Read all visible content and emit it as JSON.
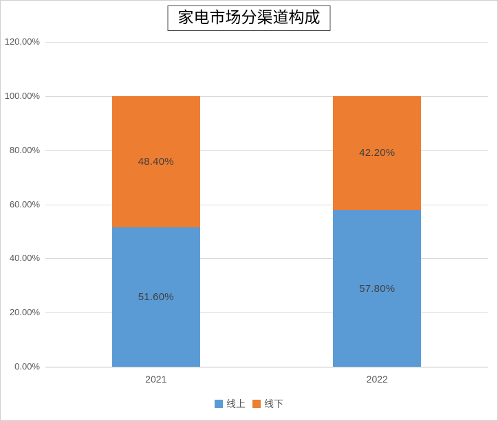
{
  "chart_data": {
    "type": "bar",
    "stacked": true,
    "title": "家电市场分渠道构成",
    "categories": [
      "2021",
      "2022"
    ],
    "series": [
      {
        "name": "线上",
        "color": "#5B9BD5",
        "values": [
          0.516,
          0.578
        ],
        "labels": [
          "51.60%",
          "57.80%"
        ]
      },
      {
        "name": "线下",
        "color": "#ED7D31",
        "values": [
          0.484,
          0.422
        ],
        "labels": [
          "48.40%",
          "42.20%"
        ]
      }
    ],
    "xlabel": "",
    "ylabel": "",
    "ylim": [
      0,
      1.2
    ],
    "y_ticks": [
      {
        "value": 0.0,
        "label": "0.00%"
      },
      {
        "value": 0.2,
        "label": "20.00%"
      },
      {
        "value": 0.4,
        "label": "40.00%"
      },
      {
        "value": 0.6,
        "label": "60.00%"
      },
      {
        "value": 0.8,
        "label": "80.00%"
      },
      {
        "value": 1.0,
        "label": "100.00%"
      },
      {
        "value": 1.2,
        "label": "120.00%"
      }
    ],
    "grid": true,
    "legend_position": "bottom"
  },
  "colors": {
    "online_blue": "#5B9BD5",
    "offline_orange": "#ED7D31",
    "gridline": "#D9D9D9",
    "axis_line": "#BFBFBF",
    "tick_text": "#595959",
    "data_label": "#404040",
    "frame_border": "#CFCFCF",
    "title_border": "#4A4A4A"
  }
}
